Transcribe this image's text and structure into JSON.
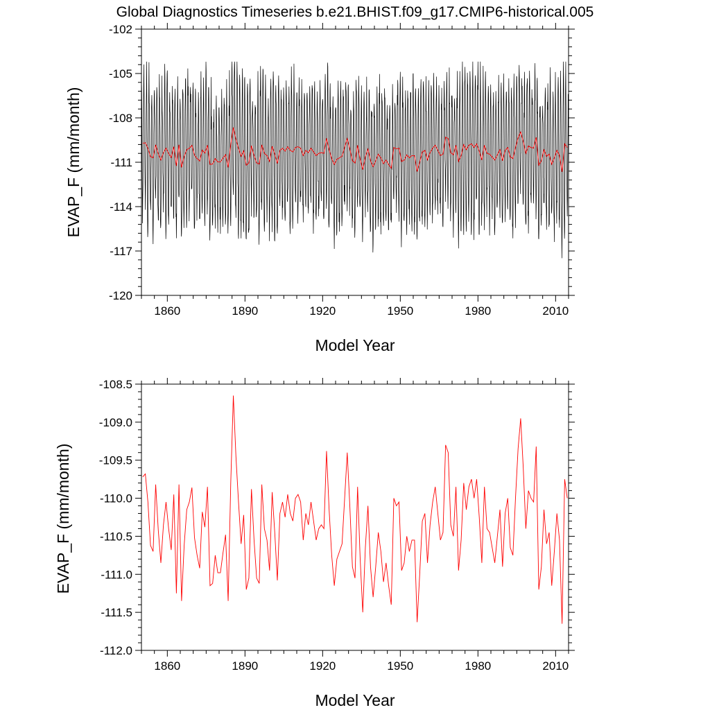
{
  "title": "Global Diagnostics Timeseries b.e21.BHIST.f09_g17.CMIP6-historical.005",
  "chart_data": [
    {
      "type": "line",
      "panel": "monthly",
      "ylabel": "EVAP_F (mm/month)",
      "xlabel": "Model Year",
      "xlim": [
        1850,
        2015
      ],
      "ylim": [
        -120,
        -102
      ],
      "xticks": [
        1860,
        1890,
        1920,
        1950,
        1980,
        2010
      ],
      "xtick_labels": [
        "1860",
        "1890",
        "1920",
        "1950",
        "1980",
        "2010"
      ],
      "yticks": [
        -120,
        -117,
        -114,
        -111,
        -108,
        -105,
        -102
      ],
      "ytick_labels": [
        "-120",
        "-117",
        "-114",
        "-111",
        "-108",
        "-105",
        "-102"
      ],
      "series": [
        {
          "name": "monthly",
          "color": "#000000",
          "note": "monthly values oscillating roughly between -116.5 and -106.5 with seasonal cycle; extremes reach about -118 and -104.5",
          "x_start": 1850,
          "x_step_per_point": 0.083333,
          "seasonal_amplitude": 4.5,
          "mean": -110.6
        },
        {
          "name": "annual mean",
          "color": "#ff0000",
          "source": "annual"
        }
      ]
    },
    {
      "type": "line",
      "panel": "annual",
      "ylabel": "EVAP_F (mm/month)",
      "xlabel": "Model Year",
      "xlim": [
        1850,
        2015
      ],
      "ylim": [
        -112.0,
        -108.5
      ],
      "xticks": [
        1860,
        1890,
        1920,
        1950,
        1980,
        2010
      ],
      "xtick_labels": [
        "1860",
        "1890",
        "1920",
        "1950",
        "1980",
        "2010"
      ],
      "yticks": [
        -112.0,
        -111.5,
        -111.0,
        -110.5,
        -110.0,
        -109.5,
        -109.0,
        -108.5
      ],
      "ytick_labels": [
        "-112.0",
        "-111.5",
        "-111.0",
        "-110.5",
        "-110.0",
        "-109.5",
        "-109.0",
        "-108.5"
      ],
      "series": [
        {
          "name": "annual mean",
          "color": "#ff0000",
          "x_start": 1850,
          "values": [
            -109.72,
            -109.68,
            -110.05,
            -110.62,
            -110.7,
            -109.82,
            -110.42,
            -110.85,
            -110.35,
            -110.05,
            -110.4,
            -110.68,
            -109.95,
            -111.25,
            -109.82,
            -111.35,
            -110.62,
            -110.15,
            -110.05,
            -109.86,
            -110.52,
            -110.75,
            -110.92,
            -110.18,
            -110.38,
            -109.85,
            -111.15,
            -111.12,
            -110.75,
            -110.98,
            -110.98,
            -110.72,
            -110.48,
            -111.35,
            -109.8,
            -108.65,
            -109.45,
            -110.05,
            -110.6,
            -110.22,
            -111.2,
            -111.05,
            -109.88,
            -110.55,
            -111.05,
            -111.12,
            -109.82,
            -110.4,
            -110.55,
            -110.95,
            -109.92,
            -110.45,
            -111.08,
            -110.2,
            -110.05,
            -110.25,
            -109.95,
            -110.2,
            -110.3,
            -110.0,
            -109.95,
            -110.05,
            -110.55,
            -110.2,
            -110.35,
            -110.05,
            -110.3,
            -110.55,
            -110.4,
            -110.35,
            -110.4,
            -109.38,
            -110.15,
            -110.75,
            -111.15,
            -110.8,
            -110.7,
            -110.6,
            -110.0,
            -109.4,
            -110.1,
            -110.9,
            -111.05,
            -109.85,
            -110.8,
            -111.5,
            -110.65,
            -110.1,
            -110.9,
            -111.3,
            -110.9,
            -110.45,
            -110.7,
            -111.1,
            -110.85,
            -111.15,
            -111.4,
            -110.0,
            -110.1,
            -110.05,
            -110.95,
            -110.85,
            -110.5,
            -110.7,
            -110.55,
            -110.55,
            -111.63,
            -111.0,
            -110.3,
            -110.2,
            -110.85,
            -110.35,
            -110.05,
            -109.85,
            -110.2,
            -110.55,
            -110.45,
            -109.3,
            -109.4,
            -110.35,
            -110.5,
            -109.85,
            -110.95,
            -110.55,
            -109.8,
            -110.15,
            -109.85,
            -109.75,
            -110.0,
            -109.75,
            -110.25,
            -110.85,
            -109.85,
            -110.4,
            -110.45,
            -110.65,
            -110.85,
            -110.5,
            -110.15,
            -110.9,
            -110.2,
            -110.0,
            -110.65,
            -110.75,
            -110.0,
            -109.35,
            -108.95,
            -109.6,
            -110.4,
            -109.9,
            -110.0,
            -110.05,
            -109.32,
            -111.2,
            -110.9,
            -110.15,
            -110.6,
            -110.45,
            -111.15,
            -110.7,
            -110.2,
            -110.55,
            -111.65,
            -109.75,
            -110.0
          ]
        }
      ]
    }
  ]
}
